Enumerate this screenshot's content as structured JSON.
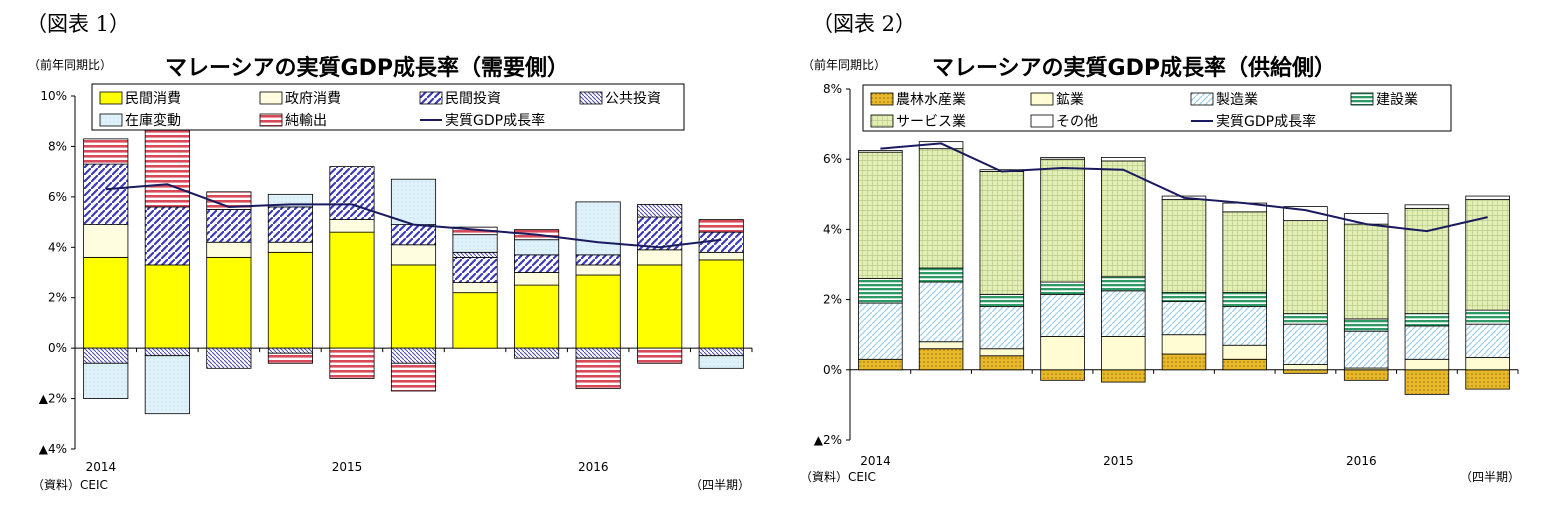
{
  "colors": {
    "consumption": "#ffff00",
    "government": "#fffde0",
    "investment_stripe": "#3a3ab8",
    "public_stripe": "#4a4aa8",
    "inventory": "#dff2fa",
    "net_exports": "#d84a5a",
    "line": "#1a1a5e",
    "agriculture": "#e6b82a",
    "mining": "#fffbd2",
    "manufacturing": "#9fd0ea",
    "construction": "#2e9a66",
    "services": "#e4efb8"
  },
  "charts": [
    {
      "figure_label": "（図表 1）",
      "unit": "（前年同期比）",
      "title": "マレーシアの実質GDP成長率（需要側）",
      "source": "（資料）CEIC",
      "period": "（四半期）",
      "chart_data": {
        "type": "bar",
        "stacked": true,
        "ylim": [
          -4,
          10
        ],
        "yticks": [
          10,
          8,
          6,
          4,
          2,
          0,
          -2,
          -4
        ],
        "ytick_labels": [
          "10%",
          "8%",
          "6%",
          "4%",
          "2%",
          "0%",
          "▲2%",
          "▲4%"
        ],
        "categories": [
          "2014Q1",
          "2014Q2",
          "2014Q3",
          "2014Q4",
          "2015Q1",
          "2015Q2",
          "2015Q3",
          "2015Q4",
          "2016Q1",
          "2016Q2",
          "2016Q3"
        ],
        "xtick_labels": [
          {
            "index": 0,
            "text": "2014"
          },
          {
            "index": 4,
            "text": "2015"
          },
          {
            "index": 8,
            "text": "2016"
          }
        ],
        "legend_placement": "top",
        "series": [
          {
            "name": "民間消費",
            "values": [
              3.6,
              3.3,
              3.6,
              3.8,
              4.6,
              3.3,
              2.2,
              2.5,
              2.9,
              3.3,
              3.5
            ]
          },
          {
            "name": "政府消費",
            "values": [
              1.3,
              0.0,
              0.6,
              0.4,
              0.5,
              0.8,
              0.4,
              0.5,
              0.4,
              0.6,
              0.3
            ]
          },
          {
            "name": "民間投資",
            "values": [
              2.4,
              2.3,
              1.3,
              1.4,
              2.1,
              0.8,
              1.0,
              0.7,
              0.4,
              1.3,
              0.8
            ]
          },
          {
            "name": "公共投資",
            "values": [
              -0.6,
              -0.3,
              -0.8,
              -0.2,
              0.0,
              -0.6,
              0.2,
              -0.4,
              -0.4,
              0.5,
              -0.3
            ]
          },
          {
            "name": "在庫変動",
            "values": [
              -1.4,
              -2.3,
              0.0,
              0.5,
              0.0,
              1.8,
              0.7,
              0.6,
              2.1,
              0.0,
              -0.5
            ]
          },
          {
            "name": "純輸出",
            "values": [
              1.0,
              3.5,
              0.7,
              -0.4,
              -1.2,
              -1.1,
              0.3,
              0.4,
              -1.2,
              -0.6,
              0.5
            ]
          }
        ],
        "line": {
          "name": "実質GDP成長率",
          "values": [
            6.3,
            6.5,
            5.6,
            5.7,
            5.7,
            4.9,
            4.7,
            4.5,
            4.2,
            4.0,
            4.3
          ]
        }
      }
    },
    {
      "figure_label": "（図表 2）",
      "unit": "（前年同期比）",
      "title": "マレーシアの実質GDP成長率（供給側）",
      "source": "（資料）CEIC",
      "period": "（四半期）",
      "chart_data": {
        "type": "bar",
        "stacked": true,
        "ylim": [
          -2,
          8
        ],
        "yticks": [
          8,
          6,
          4,
          2,
          0,
          -2
        ],
        "ytick_labels": [
          "8%",
          "6%",
          "4%",
          "2%",
          "0%",
          "▲2%"
        ],
        "categories": [
          "2014Q1",
          "2014Q2",
          "2014Q3",
          "2014Q4",
          "2015Q1",
          "2015Q2",
          "2015Q3",
          "2015Q4",
          "2016Q1",
          "2016Q2",
          "2016Q3"
        ],
        "xtick_labels": [
          {
            "index": 0,
            "text": "2014"
          },
          {
            "index": 4,
            "text": "2015"
          },
          {
            "index": 8,
            "text": "2016"
          }
        ],
        "legend_placement": "top",
        "series": [
          {
            "name": "農林水産業",
            "values": [
              0.3,
              0.6,
              0.4,
              -0.3,
              -0.35,
              0.45,
              0.3,
              -0.1,
              -0.3,
              -0.7,
              -0.55
            ]
          },
          {
            "name": "鉱業",
            "values": [
              0.0,
              0.2,
              0.2,
              0.95,
              0.95,
              0.55,
              0.4,
              0.15,
              0.05,
              0.3,
              0.35
            ]
          },
          {
            "name": "製造業",
            "values": [
              1.6,
              1.7,
              1.2,
              1.2,
              1.3,
              0.95,
              1.1,
              1.15,
              1.05,
              0.95,
              0.95
            ]
          },
          {
            "name": "建設業",
            "values": [
              0.7,
              0.4,
              0.35,
              0.35,
              0.4,
              0.25,
              0.4,
              0.3,
              0.35,
              0.35,
              0.4
            ]
          },
          {
            "name": "サービス業",
            "values": [
              3.6,
              3.4,
              3.5,
              3.5,
              3.3,
              2.65,
              2.3,
              2.65,
              2.7,
              3.0,
              3.15
            ]
          },
          {
            "name": "その他",
            "values": [
              0.05,
              0.2,
              0.05,
              0.05,
              0.1,
              0.1,
              0.25,
              0.4,
              0.3,
              0.1,
              0.1
            ]
          }
        ],
        "line": {
          "name": "実質GDP成長率",
          "values": [
            6.3,
            6.45,
            5.65,
            5.75,
            5.7,
            4.9,
            4.75,
            4.55,
            4.15,
            3.95,
            4.35
          ]
        }
      }
    }
  ]
}
